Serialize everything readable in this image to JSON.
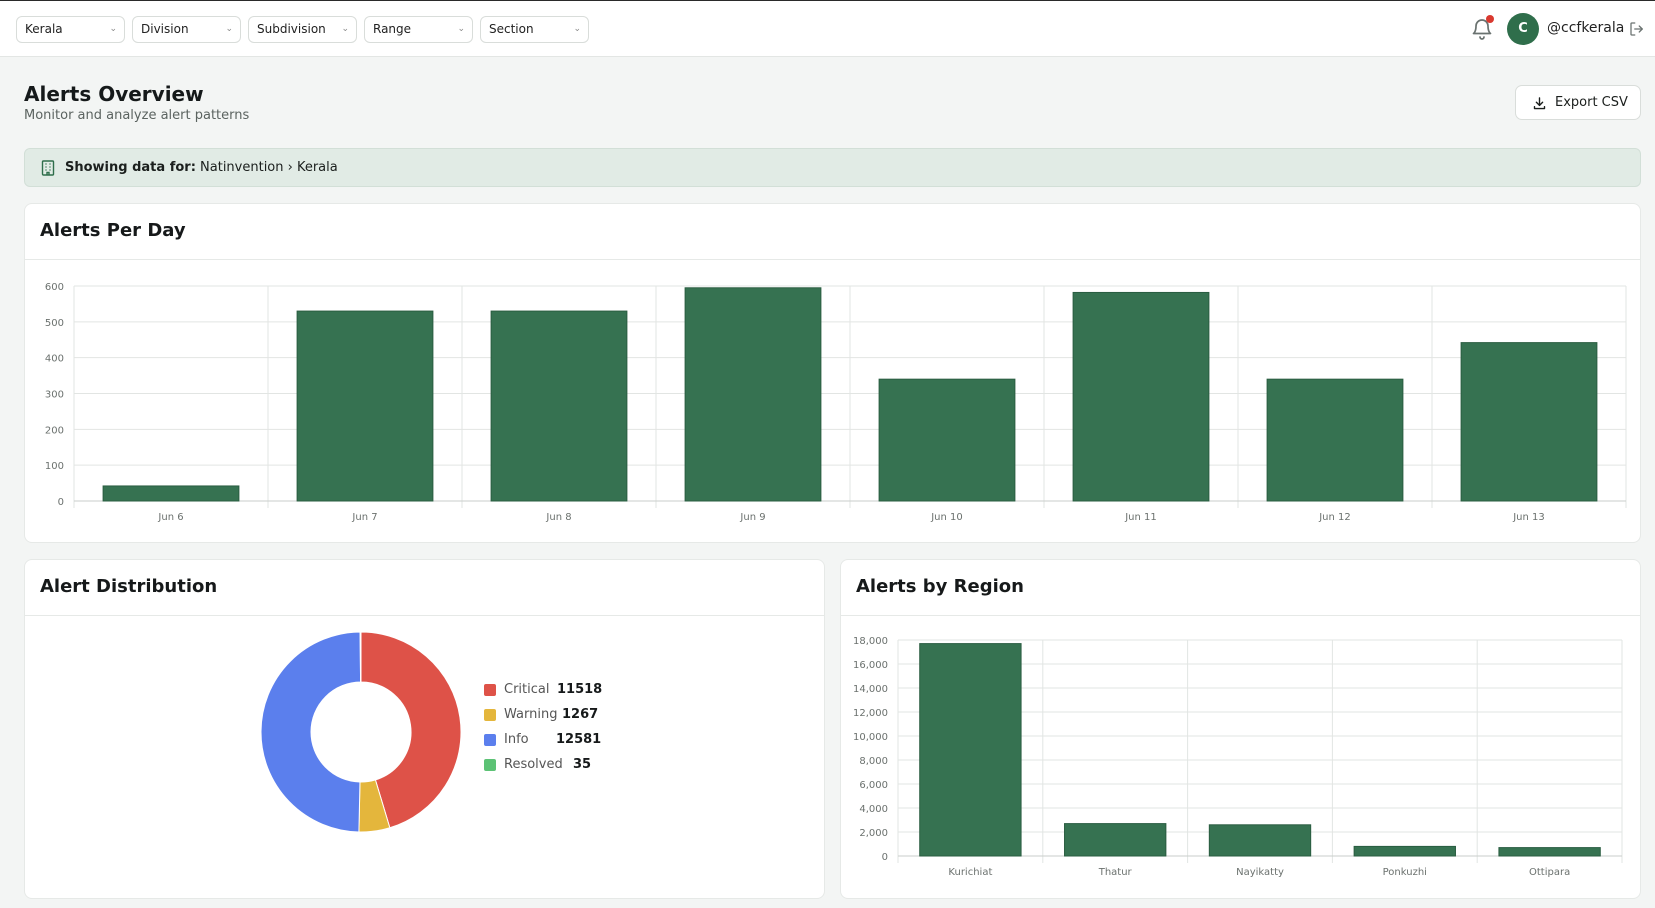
{
  "filters": [
    {
      "label": "Kerala"
    },
    {
      "label": "Division"
    },
    {
      "label": "Subdivision"
    },
    {
      "label": "Range"
    },
    {
      "label": "Section"
    }
  ],
  "user": {
    "initial": "C",
    "name": "@ccfkerala"
  },
  "page": {
    "title": "Alerts Overview",
    "subtitle": "Monitor and analyze alert patterns",
    "export_label": "Export CSV"
  },
  "context": {
    "label": "Showing data for:",
    "path": "Natinvention › Kerala"
  },
  "colors": {
    "bar": "#367251",
    "critical": "#de5248",
    "warning": "#e4b63c",
    "info": "#5b7fed",
    "resolved": "#5cc275"
  },
  "cards": {
    "per_day_title": "Alerts Per Day",
    "distribution_title": "Alert Distribution",
    "region_title": "Alerts by Region"
  },
  "chart_data": [
    {
      "type": "bar",
      "title": "Alerts Per Day",
      "categories": [
        "Jun 6",
        "Jun 7",
        "Jun 8",
        "Jun 9",
        "Jun 10",
        "Jun 11",
        "Jun 12",
        "Jun 13"
      ],
      "values": [
        42,
        530,
        530,
        595,
        340,
        582,
        340,
        442
      ],
      "ylim": [
        0,
        600
      ],
      "yticks": [
        "0",
        "100",
        "200",
        "300",
        "400",
        "500",
        "600"
      ],
      "grid": true
    },
    {
      "type": "pie",
      "title": "Alert Distribution",
      "labels": [
        "Critical",
        "Warning",
        "Info",
        "Resolved"
      ],
      "values": [
        11518,
        1267,
        12581,
        35
      ],
      "display_values": [
        "11518",
        "1267",
        "12581",
        "35"
      ],
      "legend": "right"
    },
    {
      "type": "bar",
      "title": "Alerts by Region",
      "categories": [
        "Kurichiat",
        "Thatur",
        "Nayikatty",
        "Ponkuzhi",
        "Ottipara"
      ],
      "values": [
        17700,
        2700,
        2600,
        800,
        700
      ],
      "ylim": [
        0,
        18000
      ],
      "yticks": [
        "0",
        "2,000",
        "4,000",
        "6,000",
        "8,000",
        "10,000",
        "12,000",
        "14,000",
        "16,000",
        "18,000"
      ],
      "grid": true
    }
  ]
}
